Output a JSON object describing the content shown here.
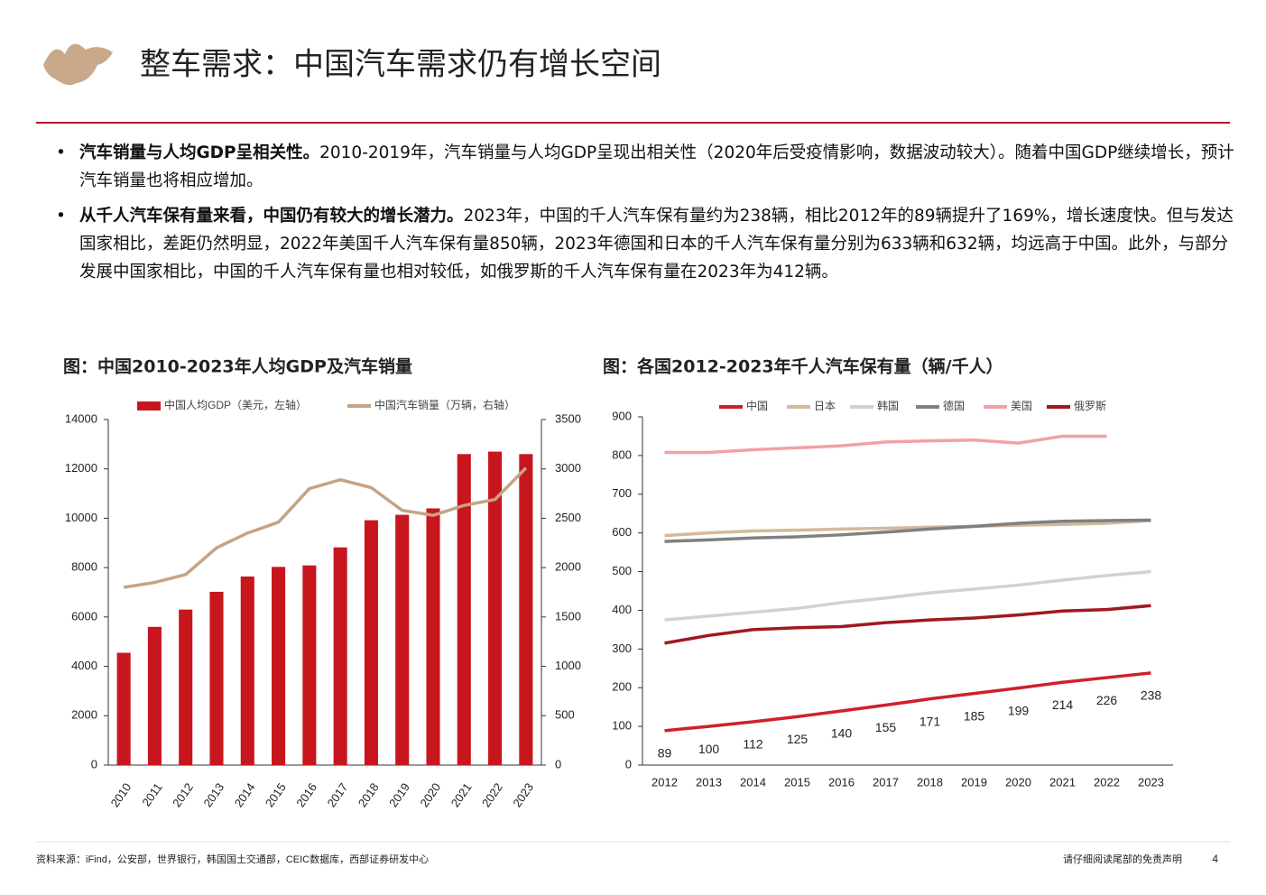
{
  "header": {
    "title": "整车需求：中国汽车需求仍有增长空间"
  },
  "bullets": [
    {
      "bold": "汽车销量与人均GDP呈相关性。",
      "text": "2010-2019年，汽车销量与人均GDP呈现出相关性（2020年后受疫情影响，数据波动较大）。随着中国GDP继续增长，预计汽车销量也将相应增加。"
    },
    {
      "bold": "从千人汽车保有量来看，中国仍有较大的增长潜力。",
      "text": "2023年，中国的千人汽车保有量约为238辆，相比2012年的89辆提升了169%，增长速度快。但与发达国家相比，差距仍然明显，2022年美国千人汽车保有量850辆，2023年德国和日本的千人汽车保有量分别为633辆和632辆，均远高于中国。此外，与部分发展中国家相比，中国的千人汽车保有量也相对较低，如俄罗斯的千人汽车保有量在2023年为412辆。"
    }
  ],
  "chart_data": [
    {
      "type": "combo",
      "title": "图：中国2010-2023年人均GDP及汽车销量",
      "categories": [
        "2010",
        "2011",
        "2012",
        "2013",
        "2014",
        "2015",
        "2016",
        "2017",
        "2018",
        "2019",
        "2020",
        "2021",
        "2022",
        "2023"
      ],
      "series": [
        {
          "name": "中国人均GDP（美元，左轴）",
          "type": "bar",
          "color": "#c8161e",
          "values": [
            4550,
            5600,
            6300,
            7020,
            7640,
            8030,
            8090,
            8820,
            9920,
            10140,
            10400,
            12600,
            12700,
            12600
          ]
        },
        {
          "name": "中国汽车销量（万辆，右轴）",
          "type": "line",
          "axis": "y2",
          "color": "#c4a484",
          "values": [
            1800,
            1850,
            1930,
            2200,
            2350,
            2460,
            2800,
            2890,
            2810,
            2580,
            2530,
            2630,
            2690,
            3010
          ]
        }
      ],
      "ylim": [
        0,
        14000
      ],
      "yticks": [
        0,
        2000,
        4000,
        6000,
        8000,
        10000,
        12000,
        14000
      ],
      "y2lim": [
        0,
        3500
      ],
      "y2ticks": [
        0,
        500,
        1000,
        1500,
        2000,
        2500,
        3000,
        3500
      ]
    },
    {
      "type": "line",
      "title": "图：各国2012-2023年千人汽车保有量（辆/千人）",
      "categories": [
        "2012",
        "2013",
        "2014",
        "2015",
        "2016",
        "2017",
        "2018",
        "2019",
        "2020",
        "2021",
        "2022",
        "2023"
      ],
      "series": [
        {
          "name": "中国",
          "color": "#d0202a",
          "values": [
            89,
            100,
            112,
            125,
            140,
            155,
            171,
            185,
            199,
            214,
            226,
            238
          ],
          "labels": true
        },
        {
          "name": "日本",
          "color": "#d4b99a",
          "values": [
            593,
            600,
            605,
            607,
            610,
            612,
            615,
            617,
            620,
            622,
            625,
            632
          ]
        },
        {
          "name": "韩国",
          "color": "#d2d2d2",
          "values": [
            375,
            385,
            395,
            405,
            420,
            432,
            445,
            455,
            465,
            478,
            490,
            500
          ]
        },
        {
          "name": "德国",
          "color": "#808080",
          "values": [
            578,
            582,
            587,
            590,
            595,
            602,
            610,
            617,
            625,
            630,
            632,
            633
          ]
        },
        {
          "name": "美国",
          "color": "#f2a0a8",
          "values": [
            808,
            808,
            815,
            820,
            825,
            835,
            838,
            840,
            832,
            850,
            850,
            null
          ]
        },
        {
          "name": "俄罗斯",
          "color": "#a01820",
          "values": [
            315,
            335,
            350,
            355,
            358,
            368,
            375,
            380,
            388,
            398,
            402,
            412
          ]
        }
      ],
      "ylim": [
        0,
        900
      ],
      "yticks": [
        0,
        100,
        200,
        300,
        400,
        500,
        600,
        700,
        800,
        900
      ]
    }
  ],
  "footer": {
    "source": "资料来源：iFind，公安部，世界银行，韩国国土交通部，CEIC数据库，西部证券研发中心",
    "disclaimer": "请仔细阅读尾部的免责声明",
    "page": "4"
  }
}
